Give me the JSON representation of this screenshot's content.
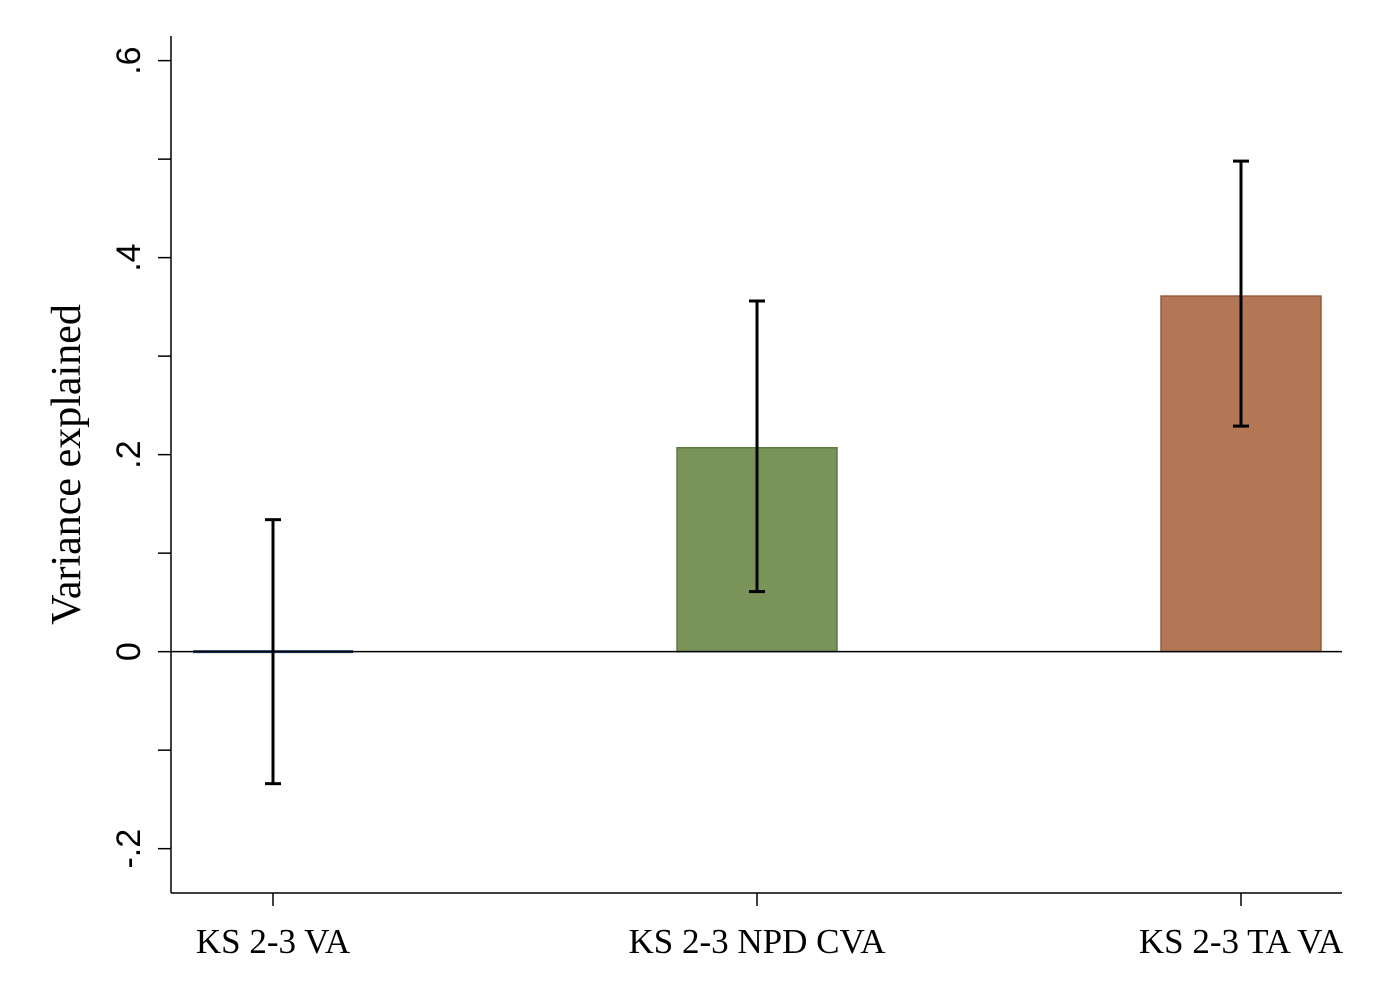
{
  "chart_data": {
    "type": "bar",
    "title": "",
    "xlabel": "",
    "ylabel": "Variance explained",
    "ylim": [
      -0.245,
      0.625
    ],
    "yticks": [
      -0.2,
      0,
      0.2,
      0.4,
      0.6
    ],
    "ytick_labels": [
      "-.2",
      "0",
      ".2",
      ".4",
      ".6"
    ],
    "yminor_ticks": [
      -0.1,
      0.1,
      0.3,
      0.5
    ],
    "grid": false,
    "legend": "none",
    "categories": [
      "KS 2-3 VA",
      "KS 2-3 NPD CVA",
      "KS 2-3 TA VA"
    ],
    "values": [
      0.0,
      0.207,
      0.361
    ],
    "ci_lower": [
      -0.134,
      0.061,
      0.229
    ],
    "ci_upper": [
      0.134,
      0.356,
      0.498
    ],
    "colors": [
      "#1a476f",
      "#7a9358",
      "#b47755"
    ],
    "edge_colors": [
      "#1a476f",
      "#5e7a43",
      "#935c3e"
    ]
  }
}
